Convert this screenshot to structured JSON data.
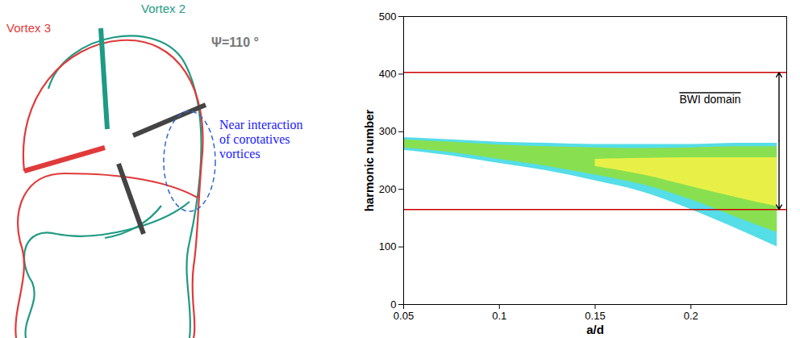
{
  "diagram": {
    "vortices": [
      {
        "label": "Vortex 2",
        "color": "#1f9a84"
      },
      {
        "label": "Vortex 3",
        "color": "#e03a3a"
      }
    ],
    "angle_label": "Ψ=110 °",
    "annotation": "Near interaction of corotatives vortices",
    "annotation_color": "#1a1aff"
  },
  "chart_data": {
    "type": "area",
    "xlabel": "a/d",
    "ylabel": "harmonic number",
    "xlim": [
      0.05,
      0.25
    ],
    "xticks": [
      0.05,
      0.1,
      0.15,
      0.2
    ],
    "ylim": [
      0,
      500
    ],
    "yticks": [
      0,
      100,
      200,
      300,
      400,
      500
    ],
    "grid": false,
    "bands": [
      {
        "color": "#55dde8",
        "x": [
          0.05,
          0.075,
          0.1,
          0.125,
          0.15,
          0.175,
          0.2,
          0.225,
          0.245
        ],
        "lower": [
          268,
          258,
          245,
          232,
          215,
          195,
          165,
          130,
          100
        ],
        "upper": [
          290,
          286,
          282,
          280,
          278,
          278,
          278,
          280,
          280
        ]
      },
      {
        "color": "#88e050",
        "x": [
          0.05,
          0.075,
          0.1,
          0.125,
          0.15,
          0.175,
          0.2,
          0.225,
          0.245
        ],
        "lower": [
          272,
          264,
          252,
          240,
          225,
          208,
          182,
          150,
          125
        ],
        "upper": [
          286,
          282,
          277,
          274,
          272,
          271,
          272,
          274,
          274
        ]
      },
      {
        "color": "#e8f048",
        "x": [
          0.15,
          0.175,
          0.2,
          0.225,
          0.245
        ],
        "lower": [
          240,
          225,
          205,
          185,
          170
        ],
        "upper": [
          252,
          254,
          255,
          255,
          255
        ]
      }
    ],
    "reference_lines": {
      "values": [
        165,
        403
      ],
      "color": "#cc0000"
    },
    "annotations": [
      {
        "text": "BWI domain"
      }
    ]
  }
}
